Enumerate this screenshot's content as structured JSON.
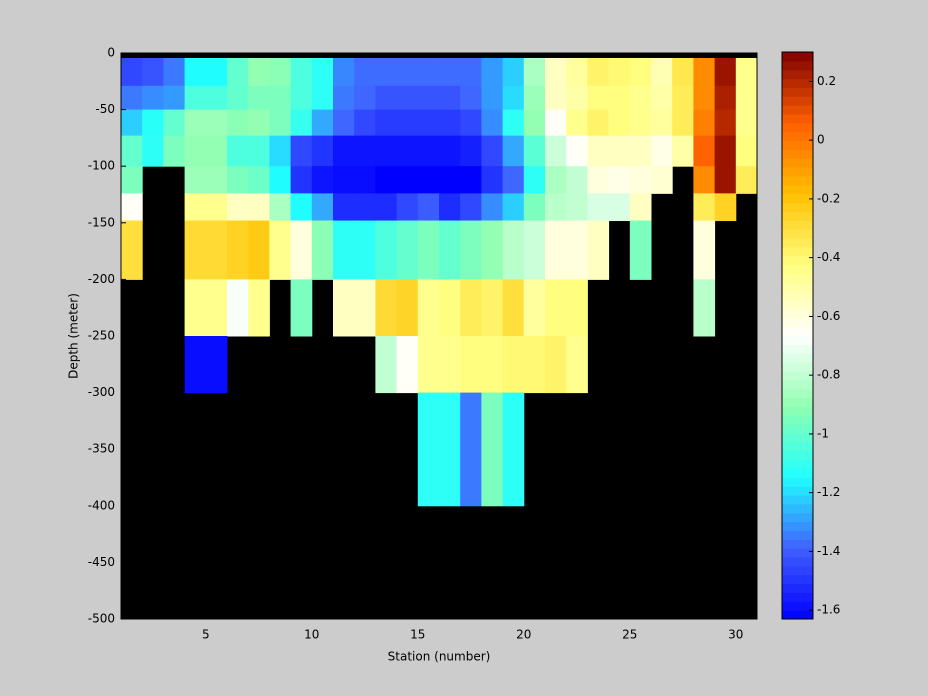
{
  "chart_data": {
    "type": "heatmap",
    "xlabel": "Station (number)",
    "ylabel": "Depth (meter)",
    "x_edges": [
      1,
      2,
      3,
      4,
      5,
      6,
      7,
      8,
      9,
      10,
      11,
      12,
      13,
      14,
      15,
      16,
      17,
      18,
      19,
      20,
      21,
      22,
      23,
      24,
      25,
      26,
      27,
      28,
      29,
      30,
      31
    ],
    "y_edges": [
      -4.4,
      -29,
      -50,
      -73,
      -100,
      -124,
      -148,
      -200,
      -250,
      -300,
      -400
    ],
    "z": [
      [
        -1.45,
        -1.42,
        -1.35,
        -1.15,
        -1.15,
        -1.0,
        -0.9,
        -0.92,
        -1.05,
        -1.12,
        -1.33,
        -1.37,
        -1.37,
        -1.37,
        -1.37,
        -1.37,
        -1.37,
        -1.3,
        -1.22,
        -0.85,
        -0.55,
        -0.48,
        -0.38,
        -0.4,
        -0.42,
        -0.52,
        -0.33,
        -0.05,
        0.25,
        -0.45
      ],
      [
        -1.35,
        -1.32,
        -1.3,
        -1.05,
        -1.05,
        -1.0,
        -0.95,
        -0.95,
        -1.05,
        -1.12,
        -1.35,
        -1.38,
        -1.42,
        -1.42,
        -1.42,
        -1.42,
        -1.38,
        -1.3,
        -1.2,
        -0.88,
        -0.55,
        -0.5,
        -0.42,
        -0.42,
        -0.45,
        -0.5,
        -0.35,
        -0.05,
        0.22,
        -0.45
      ],
      [
        -1.22,
        -1.13,
        -1.0,
        -0.88,
        -0.88,
        -0.92,
        -0.9,
        -0.95,
        -1.1,
        -1.28,
        -1.38,
        -1.45,
        -1.48,
        -1.48,
        -1.48,
        -1.48,
        -1.45,
        -1.32,
        -1.12,
        -0.9,
        -0.65,
        -0.45,
        -0.38,
        -0.42,
        -0.45,
        -0.48,
        -0.35,
        -0.02,
        0.2,
        -0.45
      ],
      [
        -1.0,
        -1.12,
        -0.95,
        -0.9,
        -0.9,
        -1.05,
        -1.05,
        -1.2,
        -1.45,
        -1.5,
        -1.58,
        -1.58,
        -1.58,
        -1.58,
        -1.58,
        -1.58,
        -1.55,
        -1.45,
        -1.28,
        -1.02,
        -0.78,
        -0.65,
        -0.55,
        -0.55,
        -0.55,
        -0.62,
        -0.5,
        0.05,
        0.25,
        -0.42
      ],
      [
        -0.95,
        null,
        null,
        -0.88,
        -0.88,
        -0.95,
        -0.98,
        -1.15,
        -1.5,
        -1.58,
        -1.6,
        -1.6,
        -1.63,
        -1.63,
        -1.63,
        -1.63,
        -1.63,
        -1.5,
        -1.38,
        -1.12,
        -0.85,
        -0.8,
        -0.6,
        -0.62,
        -0.6,
        -0.58,
        null,
        -0.05,
        0.25,
        -0.35
      ],
      [
        -0.65,
        null,
        null,
        -0.45,
        -0.45,
        -0.55,
        -0.55,
        -0.85,
        -1.15,
        -1.28,
        -1.52,
        -1.52,
        -1.52,
        -1.45,
        -1.4,
        -1.52,
        -1.45,
        -1.32,
        -1.22,
        -0.95,
        -0.82,
        -0.8,
        -0.75,
        -0.75,
        -0.55,
        null,
        null,
        -0.35,
        -0.25,
        null
      ],
      [
        -0.3,
        null,
        null,
        -0.28,
        -0.28,
        -0.25,
        -0.22,
        -0.45,
        -0.6,
        -0.92,
        -1.12,
        -1.12,
        -1.05,
        -1.0,
        -0.95,
        -1.0,
        -0.95,
        -0.9,
        -0.82,
        -0.78,
        -0.6,
        -0.6,
        -0.55,
        null,
        -0.95,
        null,
        null,
        -0.6,
        null,
        null
      ],
      [
        null,
        null,
        null,
        -0.45,
        -0.45,
        -0.68,
        -0.45,
        null,
        -0.95,
        null,
        -0.55,
        -0.55,
        -0.28,
        -0.26,
        -0.45,
        -0.42,
        -0.35,
        -0.38,
        -0.3,
        -0.48,
        -0.42,
        -0.42,
        null,
        null,
        null,
        null,
        null,
        -0.82,
        null,
        null
      ],
      [
        null,
        null,
        null,
        -1.6,
        -1.6,
        null,
        null,
        null,
        null,
        null,
        null,
        null,
        -0.8,
        -0.65,
        -0.45,
        -0.45,
        -0.42,
        -0.42,
        -0.4,
        -0.4,
        -0.38,
        -0.45,
        null,
        null,
        null,
        null,
        null,
        null,
        null,
        null
      ],
      [
        null,
        null,
        null,
        null,
        null,
        null,
        null,
        null,
        null,
        null,
        null,
        null,
        null,
        null,
        -1.12,
        -1.12,
        -1.35,
        -0.95,
        -1.12,
        null,
        null,
        null,
        null,
        null,
        null,
        null,
        null,
        null,
        null,
        null
      ]
    ],
    "xlim": [
      1,
      31
    ],
    "ylim": [
      -500,
      0
    ],
    "xticks": [
      5,
      10,
      15,
      20,
      25,
      30
    ],
    "yticks": [
      0,
      -50,
      -100,
      -150,
      -200,
      -250,
      -300,
      -350,
      -400,
      -450,
      -500
    ],
    "clim": [
      -1.63,
      0.3
    ],
    "cticks": [
      0.2,
      0,
      -0.2,
      -0.4,
      -0.6,
      -0.8,
      -1,
      -1.2,
      -1.4,
      -1.6
    ],
    "colormap": [
      "#0000ff",
      "#4060ff",
      "#20ffff",
      "#90ffb0",
      "#ffffff",
      "#ffff80",
      "#ffc000",
      "#ff6000",
      "#800000"
    ],
    "background": "#000000"
  }
}
